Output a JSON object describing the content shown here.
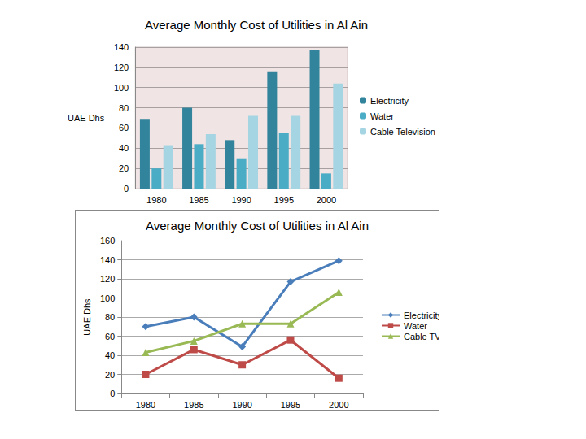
{
  "chart_data": [
    {
      "type": "bar",
      "title": "Average Monthly Cost of Utilities in Al Ain",
      "y_label": "UAE Dhs",
      "categories": [
        "1980",
        "1985",
        "1990",
        "1995",
        "2000"
      ],
      "series": [
        {
          "name": "Electricity",
          "color": "#31849b",
          "values": [
            69,
            80,
            48,
            116,
            137
          ]
        },
        {
          "name": "Water",
          "color": "#4bacc6",
          "values": [
            20,
            44,
            30,
            55,
            15
          ]
        },
        {
          "name": "Cable Television",
          "color": "#a5d5e2",
          "values": [
            43,
            54,
            72,
            72,
            104
          ]
        }
      ],
      "ylim": [
        0,
        140
      ],
      "yticks": [
        0,
        20,
        40,
        60,
        80,
        100,
        120,
        140
      ],
      "grid": true,
      "legend": "right"
    },
    {
      "type": "line",
      "title": "Average Monthly Cost of Utilities in Al Ain",
      "y_label": "UAE Dhs",
      "categories": [
        "1980",
        "1985",
        "1990",
        "1995",
        "2000"
      ],
      "series": [
        {
          "name": "Electricity",
          "color": "#4a7ebb",
          "marker": "diamond",
          "values": [
            70,
            80,
            49,
            117,
            139
          ]
        },
        {
          "name": "Water",
          "color": "#be4b48",
          "marker": "square",
          "values": [
            20,
            46,
            30,
            56,
            16
          ]
        },
        {
          "name": "Cable TV",
          "color": "#98b954",
          "marker": "triangle",
          "values": [
            43,
            55,
            73,
            73,
            106
          ]
        }
      ],
      "ylim": [
        0,
        160
      ],
      "yticks": [
        0,
        20,
        40,
        60,
        80,
        100,
        120,
        140,
        160
      ],
      "grid": true,
      "legend": "right"
    }
  ]
}
